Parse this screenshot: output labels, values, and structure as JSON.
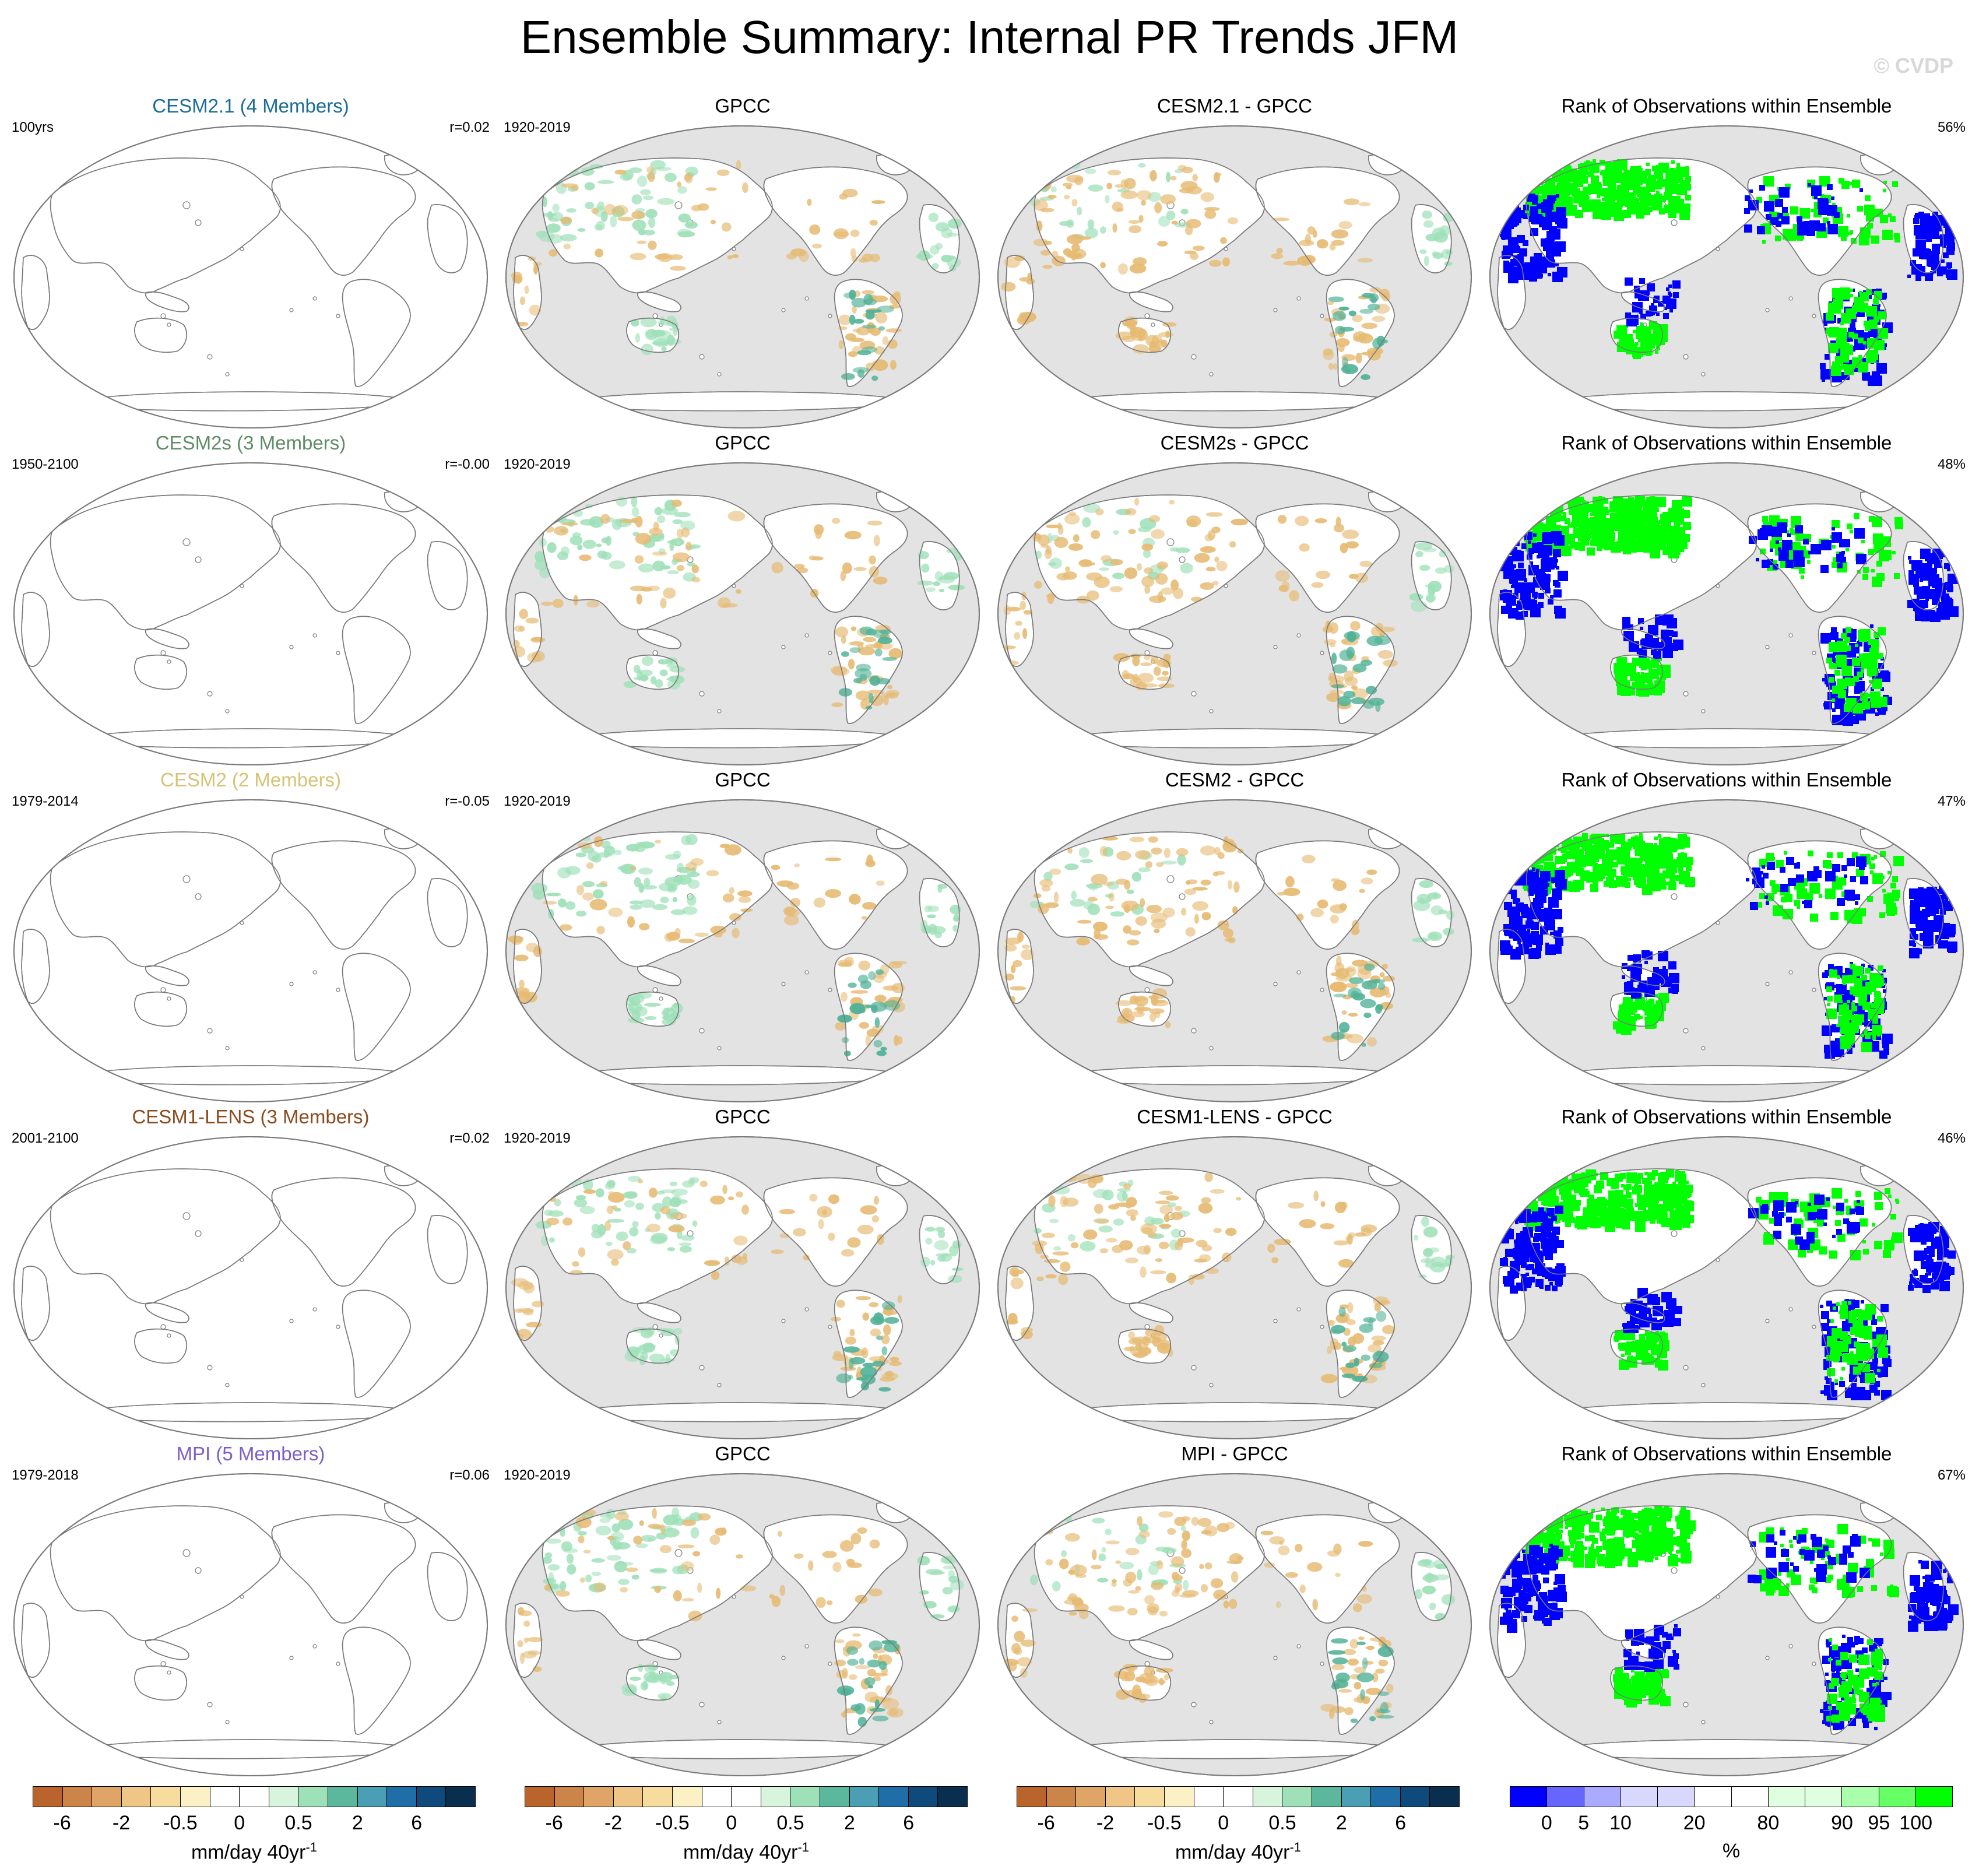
{
  "title": "Ensemble Summary: Internal PR Trends JFM",
  "watermark": "© CVDP",
  "model_colors": {
    "CESM2.1": "#1a6d95",
    "CESM2s": "#5f8c65",
    "CESM2": "#d7c276",
    "CESM1-LENS": "#8a4b1d",
    "MPI": "#7b5fc9"
  },
  "map_colors": {
    "land_fill": "#ffffff",
    "ocean_fill": "#e3e3e3",
    "coast_stroke": "#7a7a7a",
    "dry": "#e6ba72",
    "wet": "#9ee0b8",
    "wet_strong": "#4fb196",
    "rank_low": "#0000ff",
    "rank_high": "#00ff00"
  },
  "rows": [
    {
      "model": {
        "title": "CESM2.1 (4 Members)",
        "color": "#1a6d95",
        "period": "100yrs",
        "r": "r=0.02"
      },
      "obs": {
        "title": "GPCC",
        "period": "1920-2019"
      },
      "diff": {
        "title": "CESM2.1 - GPCC"
      },
      "rank": {
        "title": "Rank of Observations within Ensemble",
        "pct": "56%"
      }
    },
    {
      "model": {
        "title": "CESM2s (3 Members)",
        "color": "#5f8c65",
        "period": "1950-2100",
        "r": "r=-0.00"
      },
      "obs": {
        "title": "GPCC",
        "period": "1920-2019"
      },
      "diff": {
        "title": "CESM2s - GPCC"
      },
      "rank": {
        "title": "Rank of Observations within Ensemble",
        "pct": "48%"
      }
    },
    {
      "model": {
        "title": "CESM2 (2 Members)",
        "color": "#d7c276",
        "period": "1979-2014",
        "r": "r=-0.05"
      },
      "obs": {
        "title": "GPCC",
        "period": "1920-2019"
      },
      "diff": {
        "title": "CESM2 - GPCC"
      },
      "rank": {
        "title": "Rank of Observations within Ensemble",
        "pct": "47%"
      }
    },
    {
      "model": {
        "title": "CESM1-LENS (3 Members)",
        "color": "#8a4b1d",
        "period": "2001-2100",
        "r": "r=0.02"
      },
      "obs": {
        "title": "GPCC",
        "period": "1920-2019"
      },
      "diff": {
        "title": "CESM1-LENS - GPCC"
      },
      "rank": {
        "title": "Rank of Observations within Ensemble",
        "pct": "46%"
      }
    },
    {
      "model": {
        "title": "MPI (5 Members)",
        "color": "#7b5fc9",
        "period": "1979-2018",
        "r": "r=0.06"
      },
      "obs": {
        "title": "GPCC",
        "period": "1920-2019"
      },
      "diff": {
        "title": "MPI - GPCC"
      },
      "rank": {
        "title": "Rank of Observations within Ensemble",
        "pct": "67%"
      }
    }
  ],
  "colorbars": {
    "trend": {
      "colors": [
        "#b8642a",
        "#cc8448",
        "#e0a466",
        "#efc685",
        "#f6dd9d",
        "#fbf1c4",
        "#ffffff",
        "#ffffff",
        "#d9f4dd",
        "#9ee0b8",
        "#5cb89d",
        "#4a9fb5",
        "#1f6ea8",
        "#0f4a7d",
        "#0a2f4e"
      ],
      "ticks": [
        "-6",
        "-2",
        "-0.5",
        "0",
        "0.5",
        "2",
        "6"
      ],
      "tick_positions": [
        1,
        3,
        5,
        7,
        9,
        11,
        13
      ],
      "units": "mm/day 40yr",
      "units_sup": "-1"
    },
    "rank": {
      "colors": [
        "#0000ff",
        "#6666ff",
        "#aaaaff",
        "#d8d8ff",
        "#d8d8ff",
        "#ffffff",
        "#ffffff",
        "#e0ffe0",
        "#e0ffe0",
        "#aaffaa",
        "#66ff66",
        "#00ff00"
      ],
      "ticks": [
        "0",
        "5",
        "10",
        "20",
        "80",
        "90",
        "95",
        "100"
      ],
      "tick_positions": [
        1,
        2,
        3,
        5,
        7,
        9,
        10,
        11
      ],
      "units": "%"
    }
  }
}
